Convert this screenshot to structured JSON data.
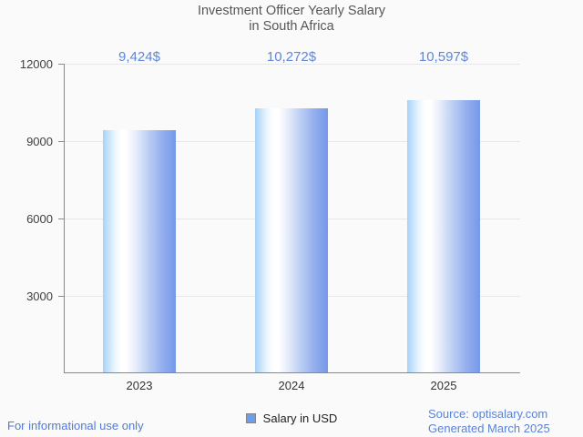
{
  "title": {
    "line1": "Investment Officer Yearly Salary",
    "line2": "in South Africa"
  },
  "chart_data": {
    "type": "bar",
    "title": "Investment Officer Yearly Salary in South Africa",
    "categories": [
      "2023",
      "2024",
      "2025"
    ],
    "values": [
      9424,
      10272,
      10597
    ],
    "value_labels": [
      "9,424$",
      "10,272$",
      "10,597$"
    ],
    "series_name": "Salary in USD",
    "xlabel": "",
    "ylabel": "",
    "ylim": [
      0,
      12000
    ],
    "yticks": [
      3000,
      6000,
      9000,
      12000
    ],
    "grid": true,
    "legend_position": "bottom"
  },
  "legend": {
    "label": "Salary in USD",
    "swatch_color": "#6d9eeb"
  },
  "footer": {
    "left": "For informational use only",
    "source": "Source: optisalary.com",
    "generated": "Generated March 2025"
  },
  "colors": {
    "background": "#fafafa",
    "title_text": "#565656",
    "value_label_text": "#5f86d8",
    "footer_text": "#5b82d9",
    "axis": "#888888",
    "gridline": "#e7e7e7",
    "bar_gradient_left": "#a6d2f7",
    "bar_gradient_mid": "#ffffff",
    "bar_gradient_right": "#7598e8"
  }
}
